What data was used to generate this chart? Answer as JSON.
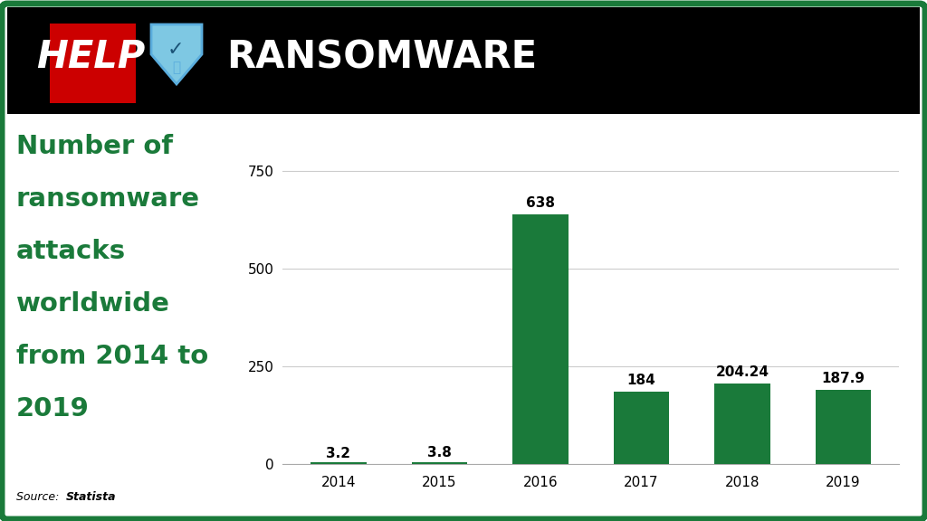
{
  "years": [
    "2014",
    "2015",
    "2016",
    "2017",
    "2018",
    "2019"
  ],
  "values": [
    3.2,
    3.8,
    638,
    184,
    204.24,
    187.9
  ],
  "bar_labels": [
    "3.2",
    "3.8",
    "638",
    "184",
    "204.24",
    "187.9"
  ],
  "bar_color": "#1a7a3a",
  "background_color": "#ffffff",
  "header_bg": "#000000",
  "border_color": "#1a7a3a",
  "title_lines": [
    "Number of",
    "ransomware",
    "attacks",
    "worldwide",
    "from 2014 to",
    "2019"
  ],
  "title_color": "#1a7a3a",
  "source_normal": "Source: ",
  "source_bold": "Statista",
  "ylim": [
    0,
    800
  ],
  "yticks": [
    0,
    250,
    500,
    750
  ],
  "title_fontsize": 21,
  "tick_fontsize": 11,
  "bar_label_fontsize": 11,
  "header_help_color": "#cc0000",
  "header_help_bg": "#cc0000",
  "header_ransomware_color": "#ffffff",
  "shield_color": "#5aaddd",
  "help_fontsize": 30,
  "ransomware_fontsize": 30
}
